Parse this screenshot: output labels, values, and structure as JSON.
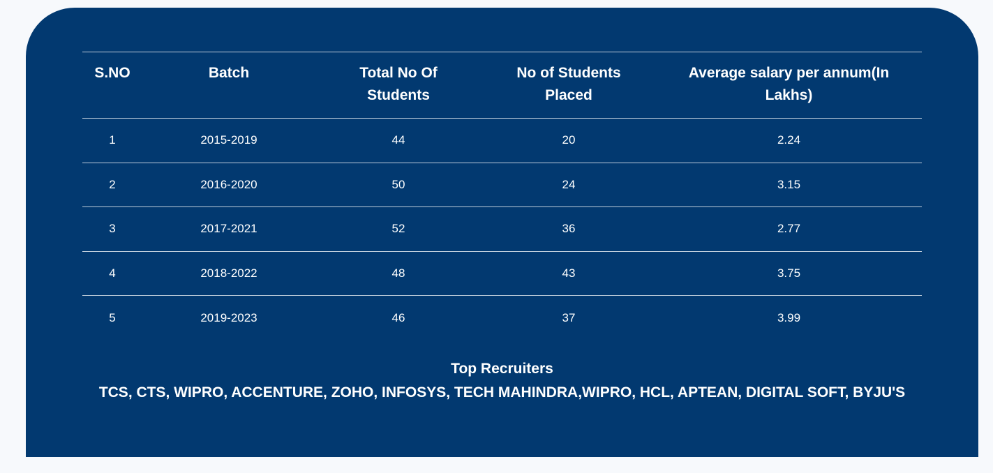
{
  "placements": {
    "columns": [
      "S.NO",
      "Batch",
      "Total No Of Students",
      "No of Students Placed",
      "Average salary per annum(In Lakhs)"
    ],
    "rows": [
      {
        "sno": "1",
        "batch": "2015-2019",
        "total": "44",
        "placed": "20",
        "salary": "2.24"
      },
      {
        "sno": "2",
        "batch": "2016-2020",
        "total": "50",
        "placed": "24",
        "salary": "3.15"
      },
      {
        "sno": "3",
        "batch": "2017-2021",
        "total": "52",
        "placed": "36",
        "salary": "2.77"
      },
      {
        "sno": "4",
        "batch": "2018-2022",
        "total": "48",
        "placed": "43",
        "salary": "3.75"
      },
      {
        "sno": "5",
        "batch": "2019-2023",
        "total": "46",
        "placed": "37",
        "salary": "3.99"
      }
    ]
  },
  "recruiters": {
    "title": "Top Recruiters",
    "list": "TCS, CTS, WIPRO, ACCENTURE, ZOHO, INFOSYS, TECH MAHINDRA,WIPRO, HCL, APTEAN, DIGITAL SOFT, BYJU'S"
  },
  "colors": {
    "panel_background": "#023970",
    "page_background": "#f7f9fc",
    "text": "#ffffff"
  }
}
